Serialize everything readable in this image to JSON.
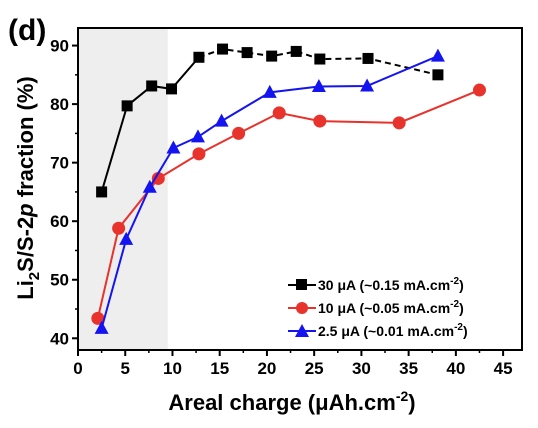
{
  "panel_label": "(d)",
  "chart_data": {
    "type": "line",
    "xlabel": "Areal charge (μAh.cm",
    "xlabel_sup": "-2",
    "xlabel_end": ")",
    "ylabel": "Li",
    "ylabel_sub": "2",
    "ylabel_mid": "S/S-2",
    "ylabel_ital": "p",
    "ylabel_end": " fraction (%)",
    "xlim": [
      0,
      47
    ],
    "ylim": [
      38,
      93
    ],
    "xticks": [
      0,
      5,
      10,
      15,
      20,
      25,
      30,
      35,
      40,
      45
    ],
    "yticks": [
      40,
      50,
      60,
      70,
      80,
      90
    ],
    "grid": false,
    "shaded_region": {
      "x": [
        0,
        9.5
      ]
    },
    "legend_position": "bottom-right",
    "series": [
      {
        "name": "30 μA (~0.15 mA.cm",
        "name_sup": "-2",
        "name_end": ")",
        "color": "#000000",
        "marker": "square",
        "linestyle": "solid-then-dashed",
        "x": [
          2.5,
          5.2,
          7.8,
          9.9,
          12.8,
          15.3,
          17.9,
          20.5,
          23.1,
          25.6,
          30.7,
          38.1
        ],
        "y": [
          65,
          79.7,
          83.1,
          82.6,
          88,
          89.4,
          88.8,
          88.2,
          89,
          87.7,
          87.8,
          85
        ]
      },
      {
        "name": "10 μA (~0.05 mA.cm",
        "name_sup": "-2",
        "name_end": ")",
        "color": "#e8322c",
        "marker": "circle",
        "linestyle": "solid",
        "x": [
          2.1,
          4.3,
          8.5,
          12.8,
          17,
          21.3,
          25.6,
          34,
          42.5
        ],
        "y": [
          43.4,
          58.8,
          67.3,
          71.5,
          75,
          78.5,
          77.1,
          76.8,
          82.4
        ]
      },
      {
        "name": "2.5 μA (~0.01 mA.cm",
        "name_sup": "-2",
        "name_end": ")",
        "color": "#1414f0",
        "marker": "triangle",
        "linestyle": "solid",
        "x": [
          2.5,
          5.1,
          7.6,
          10.1,
          12.7,
          15.2,
          20.3,
          25.5,
          30.6,
          38.1
        ],
        "y": [
          41.7,
          56.9,
          65.8,
          72.5,
          74.4,
          77.1,
          82,
          83,
          83.1,
          88.2
        ]
      }
    ]
  }
}
